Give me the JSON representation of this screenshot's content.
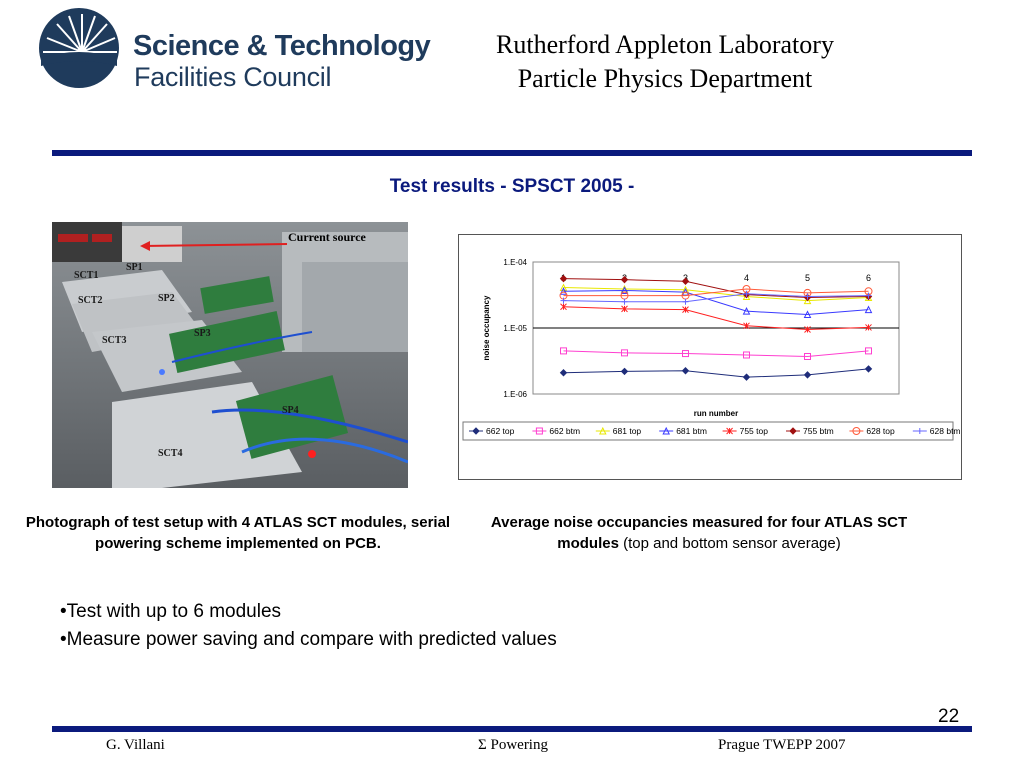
{
  "header": {
    "logo_line1": "Science & Technology",
    "logo_line2": "Facilities Council",
    "lab_line1": "Rutherford Appleton Laboratory",
    "lab_line2": "Particle Physics Department"
  },
  "slide_title": "Test results - SPSCT 2005 -",
  "photo": {
    "labels": {
      "current_source": "Current source",
      "sct1": "SCT1",
      "sct2": "SCT2",
      "sct3": "SCT3",
      "sct4": "SCT4",
      "sp1": "SP1",
      "sp2": "SP2",
      "sp3": "SP3",
      "sp4": "SP4"
    },
    "colors": {
      "arrow": "#e02020",
      "board": "#2f7d3e",
      "plate": "#c9cccf"
    }
  },
  "captions": {
    "left": "Photograph of test setup with 4 ATLAS SCT modules, serial powering scheme implemented on PCB.",
    "right_bold": "Average noise occupancies measured for four ATLAS SCT modules",
    "right_normal": "(top and bottom sensor average)"
  },
  "bullets": [
    "•Test with up to 6 modules",
    "•Measure power saving and compare with predicted values"
  ],
  "footer": {
    "author": "G. Villani",
    "topic": "Σ Powering",
    "event": "Prague TWEPP 2007",
    "page": "22"
  },
  "chart_data": {
    "type": "line",
    "ylabel": "noise occupancy",
    "xlabel": "run number",
    "yscale": "log",
    "ylim": [
      1e-06,
      0.0001
    ],
    "ytick_labels": [
      "1.E-04",
      "1.E-05",
      "1.E-06"
    ],
    "categories": [
      "1",
      "2",
      "3",
      "4",
      "5",
      "6"
    ],
    "legend_position": "bottom",
    "series": [
      {
        "name": "662 top",
        "color": "#1f2d7a",
        "marker": "diamond",
        "values": [
          2.1e-06,
          2.2e-06,
          2.25e-06,
          1.8e-06,
          1.95e-06,
          2.4e-06
        ]
      },
      {
        "name": "662 btm",
        "color": "#ff3fd0",
        "marker": "square",
        "values": [
          4.5e-06,
          4.2e-06,
          4.1e-06,
          3.9e-06,
          3.7e-06,
          4.5e-06
        ]
      },
      {
        "name": "681 top",
        "color": "#e8e800",
        "marker": "triangle",
        "values": [
          4.1e-05,
          3.9e-05,
          3.8e-05,
          3e-05,
          2.6e-05,
          2.9e-05
        ]
      },
      {
        "name": "681 btm",
        "color": "#3a3aff",
        "marker": "triangle",
        "values": [
          3.6e-05,
          3.7e-05,
          3.5e-05,
          1.8e-05,
          1.6e-05,
          1.9e-05
        ]
      },
      {
        "name": "755 top",
        "color": "#ff2020",
        "marker": "star",
        "values": [
          2.1e-05,
          1.95e-05,
          1.9e-05,
          1.08e-05,
          9.5e-06,
          1.02e-05
        ]
      },
      {
        "name": "755 btm",
        "color": "#a01010",
        "marker": "diamond",
        "values": [
          5.6e-05,
          5.4e-05,
          5.1e-05,
          3.2e-05,
          2.9e-05,
          3e-05
        ]
      },
      {
        "name": "628 top",
        "color": "#ff5a3a",
        "marker": "circle",
        "values": [
          3.1e-05,
          3.1e-05,
          3.1e-05,
          3.9e-05,
          3.4e-05,
          3.6e-05
        ]
      },
      {
        "name": "628 btm",
        "color": "#6666ff",
        "marker": "cross",
        "values": [
          2.6e-05,
          2.5e-05,
          2.5e-05,
          3.3e-05,
          3e-05,
          3.1e-05
        ]
      }
    ]
  }
}
